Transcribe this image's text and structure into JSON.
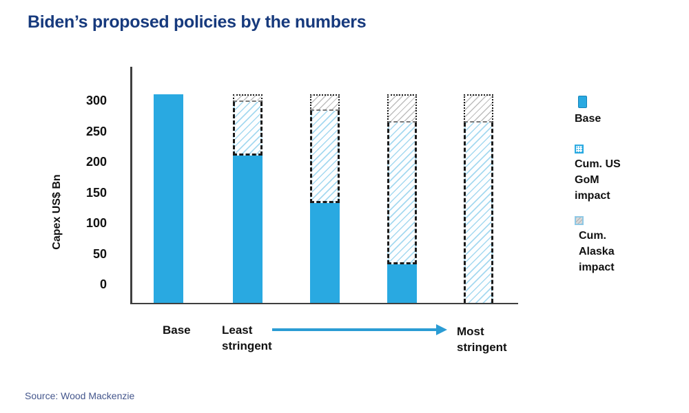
{
  "chart_data": {
    "type": "bar",
    "stacked": true,
    "title": "Biden’s proposed policies by the numbers",
    "ylabel": "Capex US$ Bn",
    "yticks": [
      300,
      250,
      200,
      150,
      100,
      50,
      0
    ],
    "ylim": [
      0,
      310
    ],
    "categories": [
      "Base",
      "Least stringent",
      "",
      "",
      "Most stringent"
    ],
    "series": [
      {
        "name": "Base",
        "style": "solid-blue",
        "values": [
          310,
          210,
          133,
          33,
          0
        ]
      },
      {
        "name": "Cum. US GoM impact",
        "style": "blue-hatch-dashed-outline",
        "values": [
          0,
          88,
          150,
          231,
          264
        ]
      },
      {
        "name": "Cum. Alaska impact",
        "style": "gray-hatch-dotted-outline",
        "values": [
          0,
          12,
          27,
          46,
          46
        ]
      }
    ],
    "x_axis_annotations": {
      "left_label": "Base",
      "arrow_from": "Least stringent",
      "arrow_to": "Most stringent"
    },
    "legend_position": "right",
    "grid": false
  },
  "legend": {
    "items": [
      {
        "label": "Base",
        "marker": "solid-blue-square"
      },
      {
        "label": "Cum. US\nGoM\nimpact",
        "marker": "dotted-blue-square"
      },
      {
        "label": "Cum.\nAlaska\nimpact",
        "marker": "gray-hatch-square"
      }
    ]
  },
  "source": "Source: Wood Mackenzie",
  "colors": {
    "bar_blue": "#29a9e1",
    "title_navy": "#173a7d",
    "arrow_blue": "#2b9cd4",
    "axis_gray": "#3f3f3f",
    "source_text": "#44568c"
  }
}
